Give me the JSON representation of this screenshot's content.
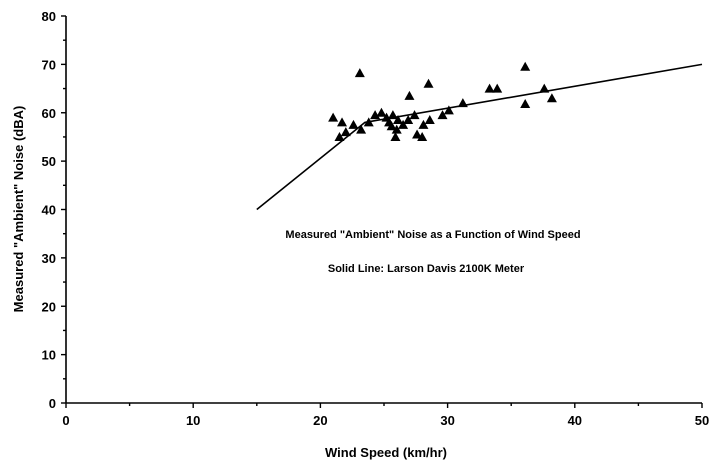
{
  "chart_data": {
    "type": "scatter",
    "xlabel": "Wind Speed (km/hr)",
    "ylabel": "Measured \"Ambient\" Noise (dBA)",
    "xlim": [
      0,
      50
    ],
    "ylim": [
      0,
      80
    ],
    "xticks": [
      0,
      10,
      20,
      30,
      40,
      50
    ],
    "yticks": [
      0,
      10,
      20,
      30,
      40,
      50,
      60,
      70,
      80
    ],
    "xticks_minor": [
      5,
      15,
      25,
      35,
      45
    ],
    "yticks_minor": [
      5,
      15,
      25,
      35,
      45,
      55,
      65,
      75
    ],
    "grid": false,
    "annotations": [
      "Measured \"Ambient\" Noise as a Function of Wind Speed",
      "Solid Line: Larson Davis 2100K Meter"
    ],
    "series": [
      {
        "marker": "triangle",
        "color": "#000000",
        "points": [
          [
            21.0,
            59.0
          ],
          [
            21.5,
            55.0
          ],
          [
            21.7,
            58.0
          ],
          [
            22.0,
            56.0
          ],
          [
            22.6,
            57.5
          ],
          [
            23.1,
            68.2
          ],
          [
            23.2,
            56.5
          ],
          [
            23.8,
            58.0
          ],
          [
            24.3,
            59.5
          ],
          [
            24.8,
            60.0
          ],
          [
            25.2,
            59.0
          ],
          [
            25.4,
            58.0
          ],
          [
            25.6,
            57.2
          ],
          [
            25.7,
            59.5
          ],
          [
            25.9,
            55.0
          ],
          [
            26.0,
            56.5
          ],
          [
            26.1,
            58.5
          ],
          [
            26.5,
            57.5
          ],
          [
            26.9,
            58.5
          ],
          [
            27.0,
            63.5
          ],
          [
            27.4,
            59.5
          ],
          [
            27.6,
            55.5
          ],
          [
            28.0,
            55.0
          ],
          [
            28.1,
            57.5
          ],
          [
            28.5,
            66.0
          ],
          [
            28.6,
            58.5
          ],
          [
            29.6,
            59.5
          ],
          [
            30.1,
            60.5
          ],
          [
            31.2,
            62.0
          ],
          [
            33.3,
            65.0
          ],
          [
            33.9,
            65.0
          ],
          [
            36.1,
            69.5
          ],
          [
            36.1,
            61.8
          ],
          [
            37.6,
            65.0
          ],
          [
            38.2,
            63.0
          ]
        ]
      },
      {
        "type": "line",
        "color": "#000000",
        "points": [
          [
            15,
            40
          ],
          [
            23.5,
            58
          ],
          [
            50,
            70
          ]
        ]
      }
    ]
  }
}
